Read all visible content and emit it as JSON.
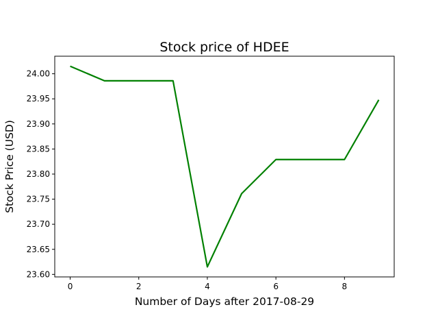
{
  "chart_data": {
    "type": "line",
    "title": "Stock price of HDEE",
    "xlabel": "Number of Days after 2017-08-29",
    "ylabel": "Stock Price (USD)",
    "x": [
      0,
      1,
      2,
      3,
      4,
      5,
      6,
      7,
      8,
      9
    ],
    "series": [
      {
        "values": [
          24.015,
          23.986,
          23.986,
          23.986,
          23.615,
          23.761,
          23.829,
          23.829,
          23.829,
          23.948
        ],
        "color": "#008000"
      }
    ],
    "xlim": [
      -0.45,
      9.45
    ],
    "ylim": [
      23.595,
      24.035
    ],
    "xticks": [
      0,
      2,
      4,
      6,
      8
    ],
    "yticks": [
      23.6,
      23.65,
      23.7,
      23.75,
      23.8,
      23.85,
      23.9,
      23.95,
      24.0
    ],
    "xtick_labels": [
      "0",
      "2",
      "4",
      "6",
      "8"
    ],
    "ytick_labels": [
      "23.60",
      "23.65",
      "23.70",
      "23.75",
      "23.80",
      "23.85",
      "23.90",
      "23.95",
      "24.00"
    ],
    "grid": false,
    "legend": "none"
  }
}
